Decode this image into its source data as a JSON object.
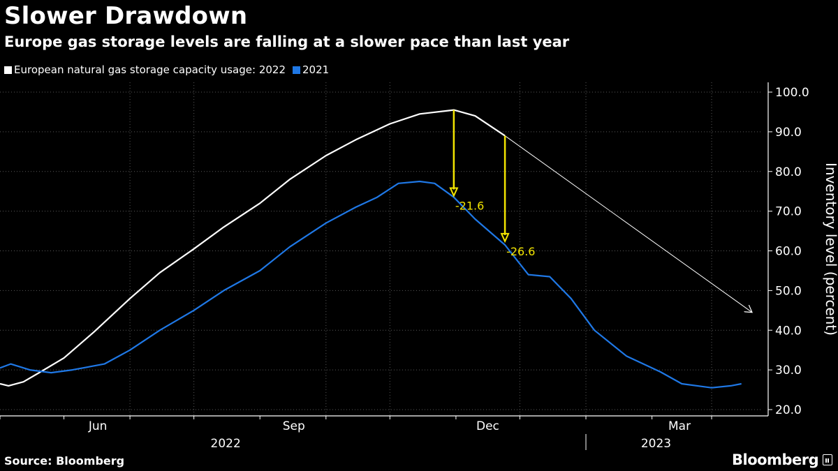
{
  "header": {
    "title": "Slower Drawdown",
    "subtitle": "Europe gas storage levels are falling at a slower pace than last year"
  },
  "legend": [
    {
      "label": "European natural gas storage capacity usage: 2022",
      "color": "#ffffff"
    },
    {
      "label": "2021",
      "color": "#1f78e6"
    }
  ],
  "footer": {
    "source": "Source: Bloomberg",
    "brand": "Bloomberg"
  },
  "colors": {
    "background": "#000000",
    "series_2022": "#ffffff",
    "series_2021": "#1f78e6",
    "annotation": "#f3e500",
    "grid": "#5a5a5a",
    "axis": "#ffffff"
  },
  "chart_data": {
    "type": "line",
    "title": "Slower Drawdown",
    "subtitle": "Europe gas storage levels are falling at a slower pace than last year",
    "ylabel": "Inventory level (percent)",
    "xlabel": "",
    "ylim": [
      20,
      100
    ],
    "xlim": [
      "2022-04-01",
      "2023-03-20"
    ],
    "y_axis_position": "right",
    "y_ticks": [
      "100.0",
      "90.0",
      "80.0",
      "70.0",
      "60.0",
      "50.0",
      "40.0",
      "30.0",
      "20.0"
    ],
    "x_tick_labels": [
      {
        "label": "Jun",
        "date": "2022-06-01"
      },
      {
        "label": "Sep",
        "date": "2022-09-01"
      },
      {
        "label": "Dec",
        "date": "2022-12-01"
      },
      {
        "label": "Mar",
        "date": "2023-03-01"
      }
    ],
    "year_labels": [
      {
        "label": "2022",
        "date": "2022-07-31"
      },
      {
        "label": "2023",
        "date": "2023-02-18"
      }
    ],
    "grid": true,
    "legend_position": "top-left",
    "series": [
      {
        "name": "European natural gas storage capacity usage: 2022",
        "color": "#ffffff",
        "points": [
          [
            "2022-04-01",
            26.5
          ],
          [
            "2022-04-05",
            26.0
          ],
          [
            "2022-04-12",
            27.0
          ],
          [
            "2022-04-20",
            29.5
          ],
          [
            "2022-05-01",
            33.0
          ],
          [
            "2022-05-15",
            39.5
          ],
          [
            "2022-06-01",
            48.0
          ],
          [
            "2022-06-15",
            54.5
          ],
          [
            "2022-07-01",
            60.5
          ],
          [
            "2022-07-15",
            66.0
          ],
          [
            "2022-08-01",
            72.0
          ],
          [
            "2022-08-15",
            78.0
          ],
          [
            "2022-09-01",
            84.0
          ],
          [
            "2022-09-15",
            88.0
          ],
          [
            "2022-10-01",
            92.0
          ],
          [
            "2022-10-15",
            94.5
          ],
          [
            "2022-10-31",
            95.5
          ],
          [
            "2022-11-10",
            94.0
          ],
          [
            "2022-11-24",
            89.0
          ]
        ]
      },
      {
        "name": "2021",
        "color": "#1f78e6",
        "points": [
          [
            "2022-04-01",
            30.5
          ],
          [
            "2022-04-06",
            31.5
          ],
          [
            "2022-04-15",
            30.0
          ],
          [
            "2022-04-25",
            29.3
          ],
          [
            "2022-05-05",
            30.0
          ],
          [
            "2022-05-20",
            31.5
          ],
          [
            "2022-06-01",
            35.0
          ],
          [
            "2022-06-15",
            40.0
          ],
          [
            "2022-07-01",
            45.0
          ],
          [
            "2022-07-15",
            50.0
          ],
          [
            "2022-08-01",
            55.0
          ],
          [
            "2022-08-15",
            61.0
          ],
          [
            "2022-09-01",
            67.0
          ],
          [
            "2022-09-15",
            71.0
          ],
          [
            "2022-09-25",
            73.5
          ],
          [
            "2022-10-05",
            77.0
          ],
          [
            "2022-10-15",
            77.5
          ],
          [
            "2022-10-22",
            77.0
          ],
          [
            "2022-10-31",
            73.5
          ],
          [
            "2022-11-10",
            68.0
          ],
          [
            "2022-11-24",
            61.5
          ],
          [
            "2022-12-05",
            54.0
          ],
          [
            "2022-12-15",
            53.5
          ],
          [
            "2022-12-25",
            48.0
          ],
          [
            "2023-01-05",
            40.0
          ],
          [
            "2023-01-20",
            33.5
          ],
          [
            "2023-02-05",
            29.5
          ],
          [
            "2023-02-15",
            26.5
          ],
          [
            "2023-03-01",
            25.5
          ],
          [
            "2023-03-10",
            26.0
          ],
          [
            "2023-03-15",
            26.5
          ]
        ]
      }
    ],
    "annotations": [
      {
        "label": "-21.6",
        "date": "2022-10-31",
        "from": 95.5,
        "to": 73.9,
        "color": "#f3e500"
      },
      {
        "label": "-26.6",
        "date": "2022-11-24",
        "from": 89.0,
        "to": 62.4,
        "color": "#f3e500"
      }
    ],
    "trend_arrow": {
      "from": [
        "2022-11-24",
        89.0
      ],
      "to": [
        "2023-03-20",
        44.5
      ],
      "color": "#ffffff"
    }
  }
}
